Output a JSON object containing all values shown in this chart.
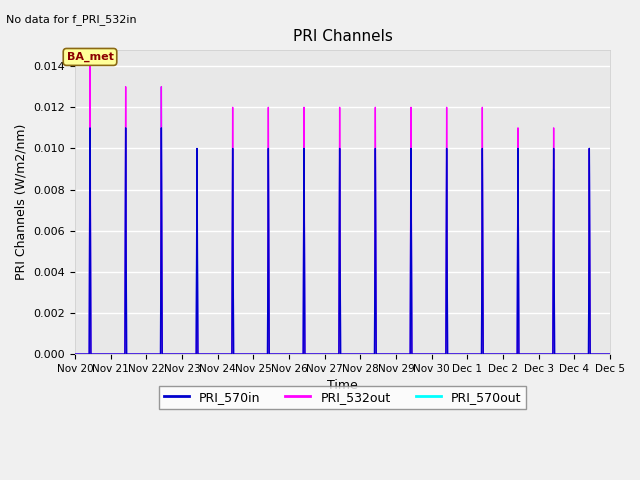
{
  "title": "PRI Channels",
  "xlabel": "Time",
  "ylabel": "PRI Channels (W/m2/nm)",
  "note": "No data for f_PRI_532in",
  "annotation": "BA_met",
  "background_color": "#f0f0f0",
  "plot_bg_color": "#e8e8e8",
  "grid_color": "white",
  "ylim": [
    0,
    0.0148
  ],
  "yticks": [
    0.0,
    0.002,
    0.004,
    0.006,
    0.008,
    0.01,
    0.012,
    0.014
  ],
  "legend": [
    {
      "label": "PRI_570in",
      "color": "#0000CD",
      "linestyle": "-"
    },
    {
      "label": "PRI_532out",
      "color": "#FF00FF",
      "linestyle": "-"
    },
    {
      "label": "PRI_570out",
      "color": "#00FFFF",
      "linestyle": "-"
    }
  ],
  "spikes_570in": [
    [
      0.42,
      0.011
    ],
    [
      1.42,
      0.011
    ],
    [
      2.42,
      0.011
    ],
    [
      3.42,
      0.01
    ],
    [
      4.42,
      0.01
    ],
    [
      5.42,
      0.01
    ],
    [
      6.42,
      0.01
    ],
    [
      7.42,
      0.01
    ],
    [
      8.42,
      0.01
    ],
    [
      9.42,
      0.01
    ],
    [
      10.42,
      0.01
    ],
    [
      11.42,
      0.01
    ],
    [
      12.42,
      0.01
    ],
    [
      13.42,
      0.01
    ],
    [
      14.42,
      0.01
    ]
  ],
  "spikes_532out": [
    [
      0.42,
      0.0142
    ],
    [
      1.42,
      0.013
    ],
    [
      2.42,
      0.013
    ],
    [
      3.42,
      0.007
    ],
    [
      4.42,
      0.012
    ],
    [
      5.42,
      0.012
    ],
    [
      6.42,
      0.012
    ],
    [
      7.42,
      0.012
    ],
    [
      8.42,
      0.012
    ],
    [
      9.42,
      0.012
    ],
    [
      10.42,
      0.012
    ],
    [
      11.42,
      0.012
    ],
    [
      12.42,
      0.011
    ],
    [
      13.42,
      0.011
    ],
    [
      14.42,
      0.01
    ]
  ],
  "spikes_570out": [
    [
      0.42,
      0.011
    ],
    [
      1.42,
      0.011
    ],
    [
      2.42,
      0.013
    ],
    [
      3.42,
      0.008
    ],
    [
      4.42,
      0.01
    ],
    [
      5.42,
      0.01
    ],
    [
      6.42,
      0.01
    ],
    [
      7.42,
      0.01
    ],
    [
      8.42,
      0.01
    ],
    [
      9.42,
      0.01
    ],
    [
      10.42,
      0.01
    ],
    [
      11.42,
      0.01
    ],
    [
      12.42,
      0.01
    ],
    [
      13.42,
      0.009
    ],
    [
      14.42,
      0.01
    ]
  ],
  "xtick_days": [
    0,
    1,
    2,
    3,
    4,
    5,
    6,
    7,
    8,
    9,
    10,
    11,
    12,
    13,
    14,
    15
  ],
  "xtick_labels": [
    "Nov 20",
    "Nov 21",
    "Nov 22",
    "Nov 23",
    "Nov 24",
    "Nov 25",
    "Nov 26",
    "Nov 27",
    "Nov 28",
    "Nov 29",
    "Nov 30",
    "Dec 1",
    "Dec 2",
    "Dec 3",
    "Dec 4",
    "Dec 5"
  ]
}
